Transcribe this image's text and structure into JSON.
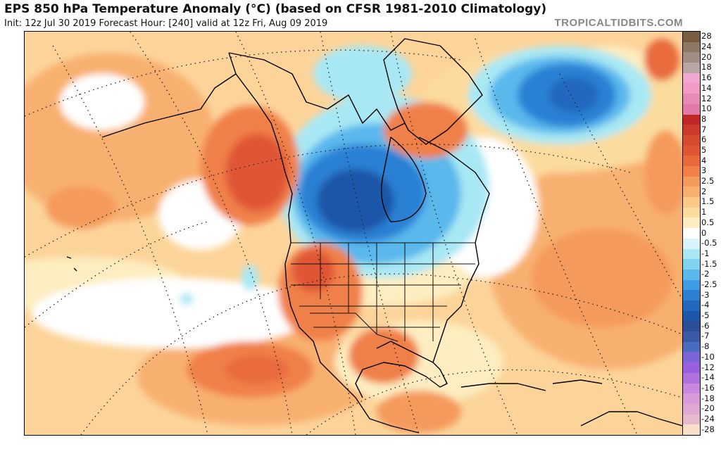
{
  "header": {
    "title": "EPS 850 hPa Temperature Anomaly (°C) (based on CFSR 1981-2010 Climatology)",
    "subtitle": "Init: 12z Jul 30 2019   Forecast Hour: [240]   valid at 12z Fri, Aug 09 2019",
    "brand": "TROPICALTIDBITS.COM"
  },
  "colorbar": {
    "unit": "°C",
    "levels": [
      {
        "label": "28",
        "color": "#7a5c3e"
      },
      {
        "label": "24",
        "color": "#8e7763"
      },
      {
        "label": "20",
        "color": "#a08e84"
      },
      {
        "label": "18",
        "color": "#b8a6a6"
      },
      {
        "label": "16",
        "color": "#f0a8d0"
      },
      {
        "label": "14",
        "color": "#f09ac4"
      },
      {
        "label": "12",
        "color": "#e88ab8"
      },
      {
        "label": "10",
        "color": "#e07aa8"
      },
      {
        "label": "8",
        "color": "#c02828"
      },
      {
        "label": "7",
        "color": "#cc3a2c"
      },
      {
        "label": "6",
        "color": "#d84a30"
      },
      {
        "label": "5",
        "color": "#e05634"
      },
      {
        "label": "4",
        "color": "#e86a3c"
      },
      {
        "label": "3",
        "color": "#f08048"
      },
      {
        "label": "2.5",
        "color": "#f49a5c"
      },
      {
        "label": "2",
        "color": "#f8b070"
      },
      {
        "label": "1.5",
        "color": "#fbc886"
      },
      {
        "label": "1",
        "color": "#fcdc9e"
      },
      {
        "label": "0.5",
        "color": "#fdedc0"
      },
      {
        "label": "0",
        "color": "#ffffff"
      },
      {
        "label": "-0.5",
        "color": "#d8f4f8"
      },
      {
        "label": "-1",
        "color": "#a8e8f4"
      },
      {
        "label": "-1.5",
        "color": "#80d4f0"
      },
      {
        "label": "-2",
        "color": "#5ab8ec"
      },
      {
        "label": "-2.5",
        "color": "#3e9ce4"
      },
      {
        "label": "-3",
        "color": "#2c80d4"
      },
      {
        "label": "-4",
        "color": "#2068c0"
      },
      {
        "label": "-5",
        "color": "#1c56a8"
      },
      {
        "label": "-6",
        "color": "#2a4e98"
      },
      {
        "label": "-7",
        "color": "#3a5aa8"
      },
      {
        "label": "-8",
        "color": "#4a6cc0"
      },
      {
        "label": "-10",
        "color": "#7a66d8"
      },
      {
        "label": "-12",
        "color": "#9a5ee0"
      },
      {
        "label": "-14",
        "color": "#b070e0"
      },
      {
        "label": "-16",
        "color": "#c888e0"
      },
      {
        "label": "-18",
        "color": "#d89ad8"
      },
      {
        "label": "-20",
        "color": "#e0a8d0"
      },
      {
        "label": "-24",
        "color": "#e8b8cc"
      },
      {
        "label": "-28",
        "color": "#f8e0c8"
      }
    ]
  }
}
